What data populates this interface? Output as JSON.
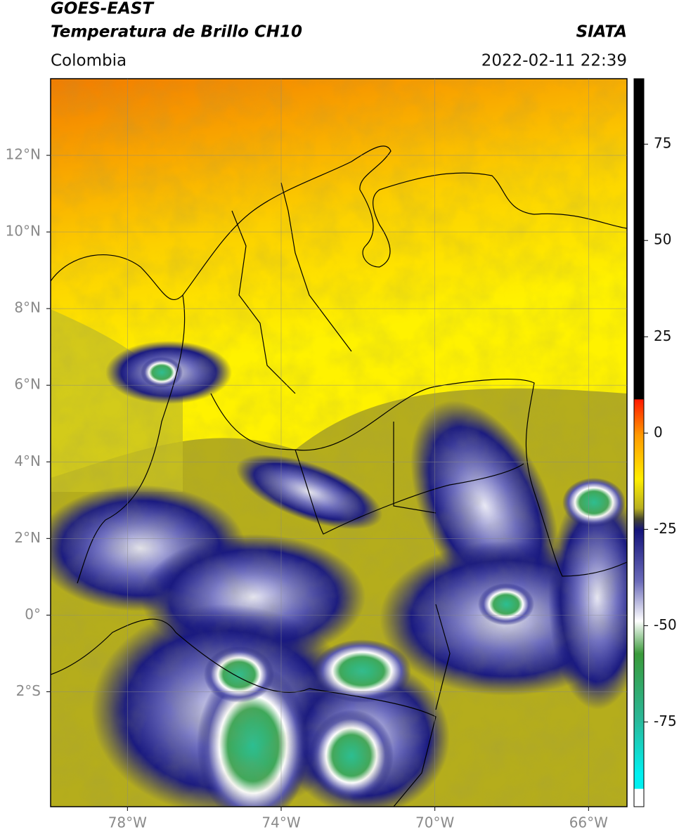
{
  "chart_data": {
    "type": "map",
    "title": "GOES-EAST",
    "subtitle": "Temperatura de Brillo CH10",
    "source": "SIATA",
    "region": "Colombia",
    "datetime": "2022-02-11 22:39",
    "xlim": [
      -80,
      -65
    ],
    "ylim": [
      -5,
      14
    ],
    "xticks": [
      {
        "value": -78,
        "label": "78°W"
      },
      {
        "value": -74,
        "label": "74°W"
      },
      {
        "value": -70,
        "label": "70°W"
      },
      {
        "value": -66,
        "label": "66°W"
      }
    ],
    "yticks": [
      {
        "value": 12,
        "label": "12°N"
      },
      {
        "value": 10,
        "label": "10°N"
      },
      {
        "value": 8,
        "label": "8°N"
      },
      {
        "value": 6,
        "label": "6°N"
      },
      {
        "value": 4,
        "label": "4°N"
      },
      {
        "value": 2,
        "label": "2°N"
      },
      {
        "value": 0,
        "label": "0°"
      },
      {
        "value": -2,
        "label": "2°S"
      }
    ],
    "grid": true,
    "colorbar": {
      "lim": [
        -97,
        92
      ],
      "ticks": [
        75,
        50,
        25,
        0,
        -25,
        -50,
        -75
      ]
    }
  }
}
